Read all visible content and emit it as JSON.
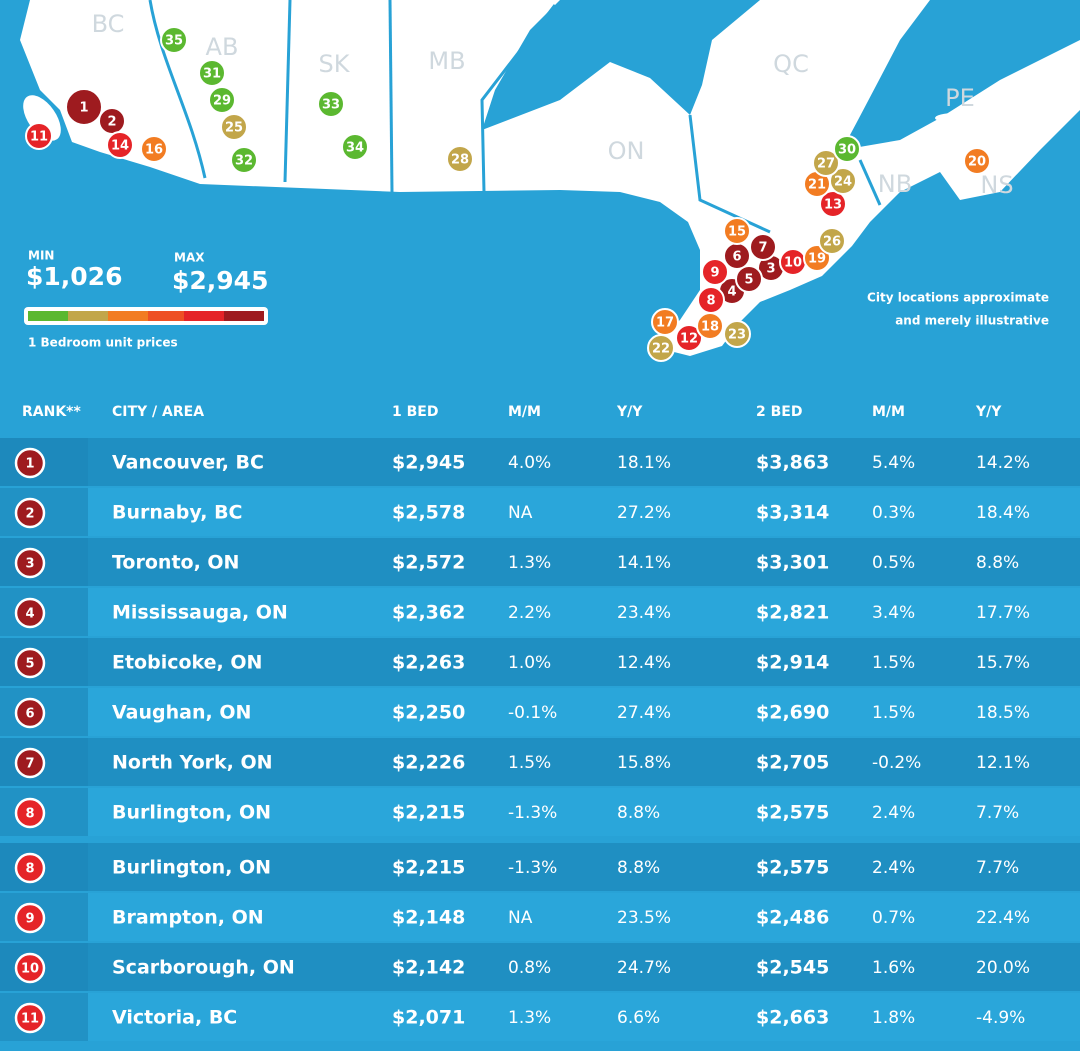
{
  "map": {
    "provinces": [
      "BC",
      "AB",
      "SK",
      "MB",
      "ON",
      "QC",
      "PE",
      "NB",
      "NS"
    ],
    "markers": [
      {
        "label": "1",
        "color": "#9e1b1f"
      },
      {
        "label": "2",
        "color": "#9e1b1f"
      },
      {
        "label": "3",
        "color": "#9e1b1f"
      },
      {
        "label": "4",
        "color": "#9e1b1f"
      },
      {
        "label": "5",
        "color": "#9e1b1f"
      },
      {
        "label": "6",
        "color": "#9e1b1f"
      },
      {
        "label": "7",
        "color": "#9e1b1f"
      },
      {
        "label": "8",
        "color": "#e52428"
      },
      {
        "label": "9",
        "color": "#e52428"
      },
      {
        "label": "10",
        "color": "#e52428"
      },
      {
        "label": "11",
        "color": "#e52428"
      },
      {
        "label": "12",
        "color": "#e52428"
      },
      {
        "label": "13",
        "color": "#e52428"
      },
      {
        "label": "14",
        "color": "#e52428"
      },
      {
        "label": "15",
        "color": "#f27c22"
      },
      {
        "label": "16",
        "color": "#f27c22"
      },
      {
        "label": "17",
        "color": "#f27c22"
      },
      {
        "label": "18",
        "color": "#f27c22"
      },
      {
        "label": "19",
        "color": "#f27c22"
      },
      {
        "label": "20",
        "color": "#f27c22"
      },
      {
        "label": "21",
        "color": "#f27c22"
      },
      {
        "label": "22",
        "color": "#c2a64a"
      },
      {
        "label": "23",
        "color": "#c2a64a"
      },
      {
        "label": "24",
        "color": "#c2a64a"
      },
      {
        "label": "25",
        "color": "#c2a64a"
      },
      {
        "label": "26",
        "color": "#c2a64a"
      },
      {
        "label": "27",
        "color": "#c2a64a"
      },
      {
        "label": "28",
        "color": "#c2a64a"
      },
      {
        "label": "29",
        "color": "#5bb830"
      },
      {
        "label": "30",
        "color": "#5bb830"
      },
      {
        "label": "31",
        "color": "#5bb830"
      },
      {
        "label": "32",
        "color": "#5bb830"
      },
      {
        "label": "33",
        "color": "#5bb830"
      },
      {
        "label": "34",
        "color": "#5bb830"
      },
      {
        "label": "35",
        "color": "#5bb830"
      }
    ],
    "legend": {
      "min_label": "MIN",
      "min_value": "$1,026",
      "max_label": "MAX",
      "max_value": "$2,945",
      "caption": "1 Bedroom unit prices"
    },
    "note_lines": [
      "City locations approximate",
      "and merely illustrative"
    ]
  },
  "table": {
    "headers": [
      "RANK**",
      "CITY / AREA",
      "1 BED",
      "M/M",
      "Y/Y",
      "2 BED",
      "M/M",
      "Y/Y"
    ],
    "rank_colors": [
      "#9e1b1f",
      "#9e1b1f",
      "#9e1b1f",
      "#9e1b1f",
      "#9e1b1f",
      "#9e1b1f",
      "#9e1b1f",
      "#e52428",
      "#e52428",
      "#e52428",
      "#e52428",
      "#e52428"
    ],
    "rows": [
      [
        "1",
        "Vancouver, BC",
        "$2,945",
        "4.0%",
        "18.1%",
        "$3,863",
        "5.4%",
        "14.2%"
      ],
      [
        "2",
        "Burnaby, BC",
        "$2,578",
        "NA",
        "27.2%",
        "$3,314",
        "0.3%",
        "18.4%"
      ],
      [
        "3",
        "Toronto, ON",
        "$2,572",
        "1.3%",
        "14.1%",
        "$3,301",
        "0.5%",
        "8.8%"
      ],
      [
        "4",
        "Mississauga, ON",
        "$2,362",
        "2.2%",
        "23.4%",
        "$2,821",
        "3.4%",
        "17.7%"
      ],
      [
        "5",
        "Etobicoke, ON",
        "$2,263",
        "1.0%",
        "12.4%",
        "$2,914",
        "1.5%",
        "15.7%"
      ],
      [
        "6",
        "Vaughan, ON",
        "$2,250",
        "-0.1%",
        "27.4%",
        "$2,690",
        "1.5%",
        "18.5%"
      ],
      [
        "7",
        "North York, ON",
        "$2,226",
        "1.5%",
        "15.8%",
        "$2,705",
        "-0.2%",
        "12.1%"
      ],
      [
        "8",
        "Burlington, ON",
        "$2,215",
        "-1.3%",
        "8.8%",
        "$2,575",
        "2.4%",
        "7.7%"
      ],
      [
        "8",
        "Burlington, ON",
        "$2,215",
        "-1.3%",
        "8.8%",
        "$2,575",
        "2.4%",
        "7.7%"
      ],
      [
        "9",
        "Brampton, ON",
        "$2,148",
        "NA",
        "23.5%",
        "$2,486",
        "0.7%",
        "22.4%"
      ],
      [
        "10",
        "Scarborough, ON",
        "$2,142",
        "0.8%",
        "24.7%",
        "$2,545",
        "1.6%",
        "20.0%"
      ],
      [
        "11",
        "Victoria, BC",
        "$2,071",
        "1.3%",
        "6.6%",
        "$2,663",
        "1.8%",
        "-4.9%"
      ]
    ]
  }
}
